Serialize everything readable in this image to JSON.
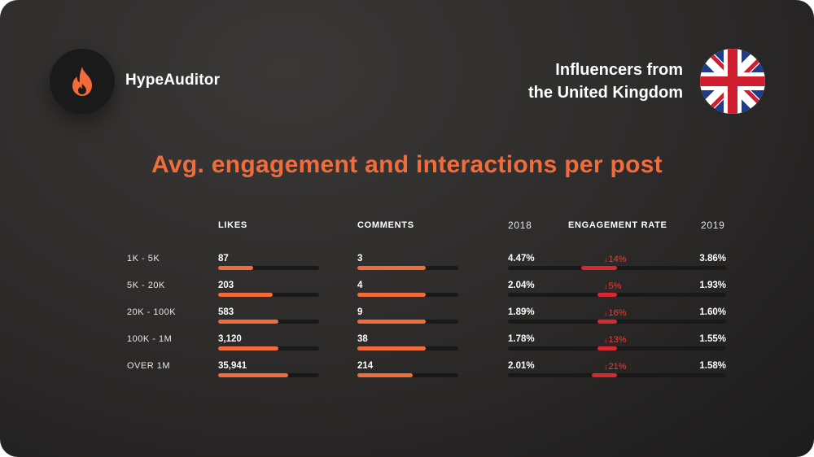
{
  "brand": {
    "name": "HypeAuditor",
    "logo_icon": "flame-icon"
  },
  "region": {
    "line1": "Influencers from",
    "line2": "the United Kingdom",
    "flag_icon": "uk-flag-icon"
  },
  "colors": {
    "accent": "#f26b3a",
    "decrease": "#d7282f",
    "track": "#1a1919"
  },
  "chart_data": {
    "type": "table",
    "title": "Avg. engagement and interactions per post",
    "columns": {
      "likes": "LIKES",
      "comments": "COMMENTS",
      "engagement_rate": "ENGAGEMENT RATE",
      "year_from": "2018",
      "year_to": "2019"
    },
    "rows": [
      {
        "tier": "1K - 5K",
        "likes": "87",
        "comments": "3",
        "er_2018": "4.47%",
        "er_2019": "3.86%",
        "change": "14%",
        "likes_fill": 0.35,
        "comments_fill": 0.68,
        "er_2018_value": 4.47,
        "er_2019_value": 3.86
      },
      {
        "tier": "5K - 20K",
        "likes": "203",
        "comments": "4",
        "er_2018": "2.04%",
        "er_2019": "1.93%",
        "change": "5%",
        "likes_fill": 0.54,
        "comments_fill": 0.68,
        "er_2018_value": 2.04,
        "er_2019_value": 1.93
      },
      {
        "tier": "20K - 100K",
        "likes": "583",
        "comments": "9",
        "er_2018": "1.89%",
        "er_2019": "1.60%",
        "change": "16%",
        "likes_fill": 0.6,
        "comments_fill": 0.68,
        "er_2018_value": 1.89,
        "er_2019_value": 1.6
      },
      {
        "tier": "100K - 1M",
        "likes": "3,120",
        "comments": "38",
        "er_2018": "1.78%",
        "er_2019": "1.55%",
        "change": "13%",
        "likes_fill": 0.6,
        "comments_fill": 0.68,
        "er_2018_value": 1.78,
        "er_2019_value": 1.55
      },
      {
        "tier": "OVER 1M",
        "likes": "35,941",
        "comments": "214",
        "er_2018": "2.01%",
        "er_2019": "1.58%",
        "change": "21%",
        "likes_fill": 0.69,
        "comments_fill": 0.55,
        "er_2018_value": 2.01,
        "er_2019_value": 1.58
      }
    ]
  }
}
